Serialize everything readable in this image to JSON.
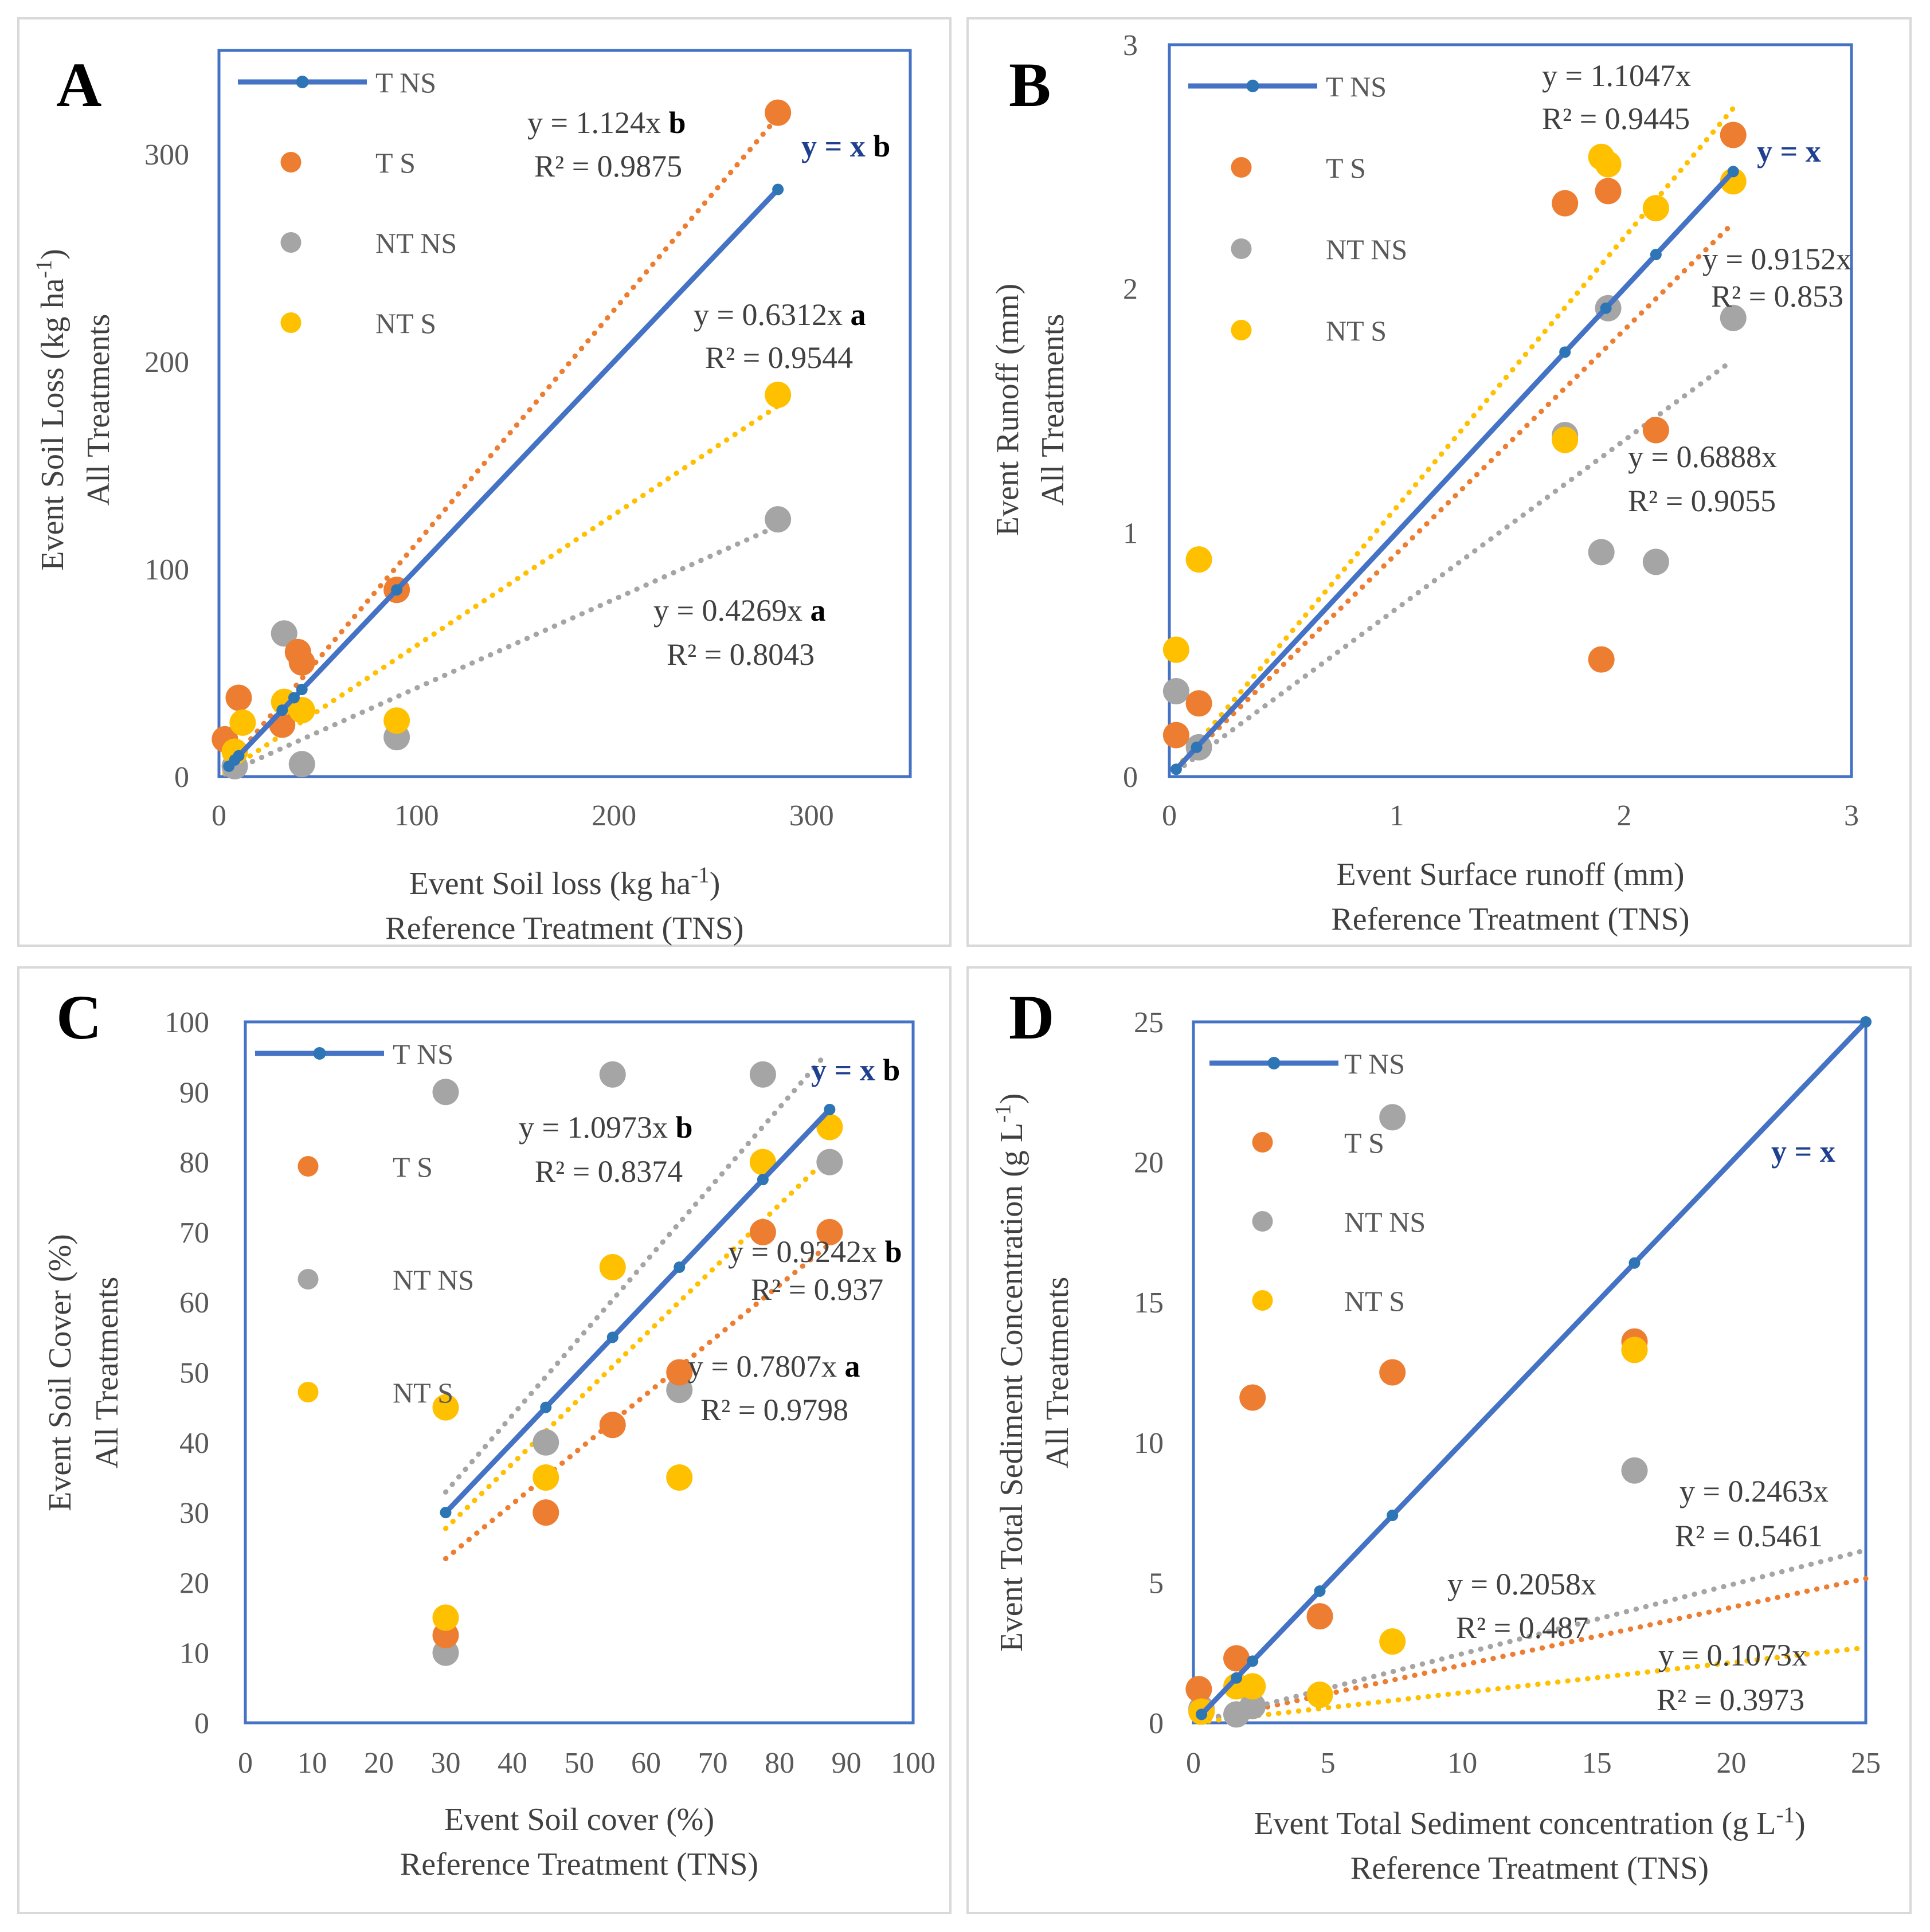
{
  "figure": {
    "colors": {
      "TNS": "#4472c4",
      "TNS_marker": "#2e75b6",
      "TS": "#ed7d31",
      "NTNS": "#a5a5a5",
      "NTS": "#ffc000",
      "frame": "#4472c4",
      "panel_border": "#d9d9d9",
      "yx_label": "#1f3f8f"
    }
  },
  "chart_data": [
    {
      "panel": "A",
      "type": "scatter",
      "xlim": [
        0,
        350
      ],
      "ylim": [
        0,
        350
      ],
      "xticks": [
        0,
        100,
        200,
        300
      ],
      "yticks": [
        0,
        100,
        200,
        300
      ],
      "xlabel_line1": "Event Soil loss (kg ha",
      "xlabel_sup": "-1",
      "xlabel_line1_end": ")",
      "xlabel_line2": "Reference Treatment (TNS)",
      "ylabel_line1": "Event Soil Loss (kg ha",
      "ylabel_sup": "-1",
      "ylabel_line1_end": ")",
      "ylabel_line2": "All  Treatments",
      "legend": [
        "T NS",
        "T S",
        "NT NS",
        "NT S"
      ],
      "series": [
        {
          "name": "T NS",
          "points": [
            [
              5,
              5
            ],
            [
              8,
              8
            ],
            [
              10,
              10
            ],
            [
              32,
              32
            ],
            [
              38,
              38
            ],
            [
              42,
              42
            ],
            [
              90,
              90
            ],
            [
              283,
              283
            ]
          ]
        },
        {
          "name": "T S",
          "points": [
            [
              3,
              18
            ],
            [
              10,
              38
            ],
            [
              32,
              25
            ],
            [
              40,
              60
            ],
            [
              42,
              55
            ],
            [
              90,
              90
            ],
            [
              283,
              320
            ]
          ]
        },
        {
          "name": "NT NS",
          "points": [
            [
              8,
              5
            ],
            [
              33,
              69
            ],
            [
              42,
              6
            ],
            [
              90,
              19
            ],
            [
              283,
              124
            ]
          ]
        },
        {
          "name": "NT S",
          "points": [
            [
              8,
              12
            ],
            [
              12,
              26
            ],
            [
              33,
              36
            ],
            [
              42,
              32
            ],
            [
              90,
              27
            ],
            [
              283,
              184
            ]
          ]
        }
      ],
      "trendlines": [
        {
          "name": "T S",
          "slope": 1.124,
          "x_range": [
            3,
            283
          ]
        },
        {
          "name": "NT NS",
          "slope": 0.4269,
          "x_range": [
            3,
            283
          ]
        },
        {
          "name": "NT S",
          "slope": 0.6312,
          "x_range": [
            3,
            283
          ]
        }
      ],
      "equations": [
        {
          "series": "T S",
          "eq": "y = 1.124x",
          "letter": "b",
          "r2": "R² = 0.9875"
        },
        {
          "series": "NT S",
          "eq": "y = 0.6312x",
          "letter": "a",
          "r2": "R² = 0.9544"
        },
        {
          "series": "NT NS",
          "eq": "y = 0.4269x",
          "letter": "a",
          "r2": "R² = 0.8043"
        }
      ],
      "yx_label": "y = x",
      "yx_letter": "b"
    },
    {
      "panel": "B",
      "type": "scatter",
      "xlim": [
        0,
        3
      ],
      "ylim": [
        0,
        3
      ],
      "xticks": [
        0,
        1,
        2,
        3
      ],
      "yticks": [
        0,
        1,
        2,
        3
      ],
      "xlabel_line1": "Event Surface runoff (mm)",
      "xlabel_line2": "Reference Treatment (TNS)",
      "ylabel_line1": "Event Runoff (mm)",
      "ylabel_line2": "All  Treatments",
      "legend": [
        "T NS",
        "T S",
        "NT NS",
        "NT S"
      ],
      "series": [
        {
          "name": "T NS",
          "points": [
            [
              0.03,
              0.03
            ],
            [
              0.12,
              0.12
            ],
            [
              1.74,
              1.74
            ],
            [
              1.92,
              1.92
            ],
            [
              2.14,
              2.14
            ],
            [
              2.48,
              2.48
            ]
          ]
        },
        {
          "name": "T S",
          "points": [
            [
              0.03,
              0.17
            ],
            [
              0.13,
              0.3
            ],
            [
              1.74,
              2.35
            ],
            [
              1.9,
              0.48
            ],
            [
              1.93,
              2.4
            ],
            [
              2.14,
              1.42
            ],
            [
              2.48,
              2.63
            ]
          ]
        },
        {
          "name": "NT NS",
          "points": [
            [
              0.03,
              0.35
            ],
            [
              0.13,
              0.12
            ],
            [
              1.74,
              1.4
            ],
            [
              1.9,
              0.92
            ],
            [
              1.93,
              1.92
            ],
            [
              2.14,
              0.88
            ],
            [
              2.48,
              1.88
            ]
          ]
        },
        {
          "name": "NT S",
          "points": [
            [
              0.03,
              0.52
            ],
            [
              0.13,
              0.89
            ],
            [
              1.74,
              1.38
            ],
            [
              1.9,
              2.54
            ],
            [
              1.93,
              2.51
            ],
            [
              2.14,
              2.33
            ],
            [
              2.48,
              2.44
            ]
          ]
        }
      ],
      "trendlines": [
        {
          "name": "T S",
          "slope": 0.9152,
          "x_range": [
            0.03,
            2.48
          ]
        },
        {
          "name": "NT NS",
          "slope": 0.6888,
          "x_range": [
            0.03,
            2.45
          ]
        },
        {
          "name": "NT S",
          "slope": 1.1047,
          "x_range": [
            0.03,
            2.48
          ]
        }
      ],
      "equations": [
        {
          "series": "NT S",
          "eq": "y = 1.1047x",
          "letter": "",
          "r2": "R² = 0.9445"
        },
        {
          "series": "T S",
          "eq": "y = 0.9152x",
          "letter": "",
          "r2": "R² = 0.853"
        },
        {
          "series": "NT NS",
          "eq": "y = 0.6888x",
          "letter": "",
          "r2": "R² = 0.9055"
        }
      ],
      "yx_label": "y = x",
      "yx_letter": ""
    },
    {
      "panel": "C",
      "type": "scatter",
      "xlim": [
        0,
        100
      ],
      "ylim": [
        0,
        100
      ],
      "xticks": [
        0,
        10,
        20,
        30,
        40,
        50,
        60,
        70,
        80,
        90,
        100
      ],
      "yticks": [
        0,
        10,
        20,
        30,
        40,
        50,
        60,
        70,
        80,
        90,
        100
      ],
      "xlabel_line1": "Event Soil cover (%)",
      "xlabel_line2": "Reference Treatment (TNS)",
      "ylabel_line1": "Event  Soil Cover (%)",
      "ylabel_line2": "All  Treatments",
      "legend": [
        "T NS",
        "T S",
        "NT NS",
        "NT S"
      ],
      "series": [
        {
          "name": "T NS",
          "points": [
            [
              30,
              30
            ],
            [
              45,
              45
            ],
            [
              55,
              55
            ],
            [
              65,
              65
            ],
            [
              77.5,
              77.5
            ],
            [
              87.5,
              87.5
            ]
          ]
        },
        {
          "name": "T S",
          "points": [
            [
              30,
              12.5
            ],
            [
              45,
              30
            ],
            [
              55,
              42.5
            ],
            [
              65,
              50
            ],
            [
              77.5,
              70
            ],
            [
              87.5,
              70
            ]
          ]
        },
        {
          "name": "NT NS",
          "points": [
            [
              30,
              90
            ],
            [
              30,
              10
            ],
            [
              45,
              40
            ],
            [
              55,
              92.5
            ],
            [
              65,
              47.5
            ],
            [
              77.5,
              92.5
            ],
            [
              87.5,
              80
            ]
          ]
        },
        {
          "name": "NT S",
          "points": [
            [
              30,
              45
            ],
            [
              30,
              15
            ],
            [
              45,
              35
            ],
            [
              55,
              65
            ],
            [
              65,
              35
            ],
            [
              77.5,
              80
            ],
            [
              87.5,
              85
            ]
          ]
        }
      ],
      "trendlines": [
        {
          "name": "T S",
          "slope": 0.7807,
          "x_range": [
            30,
            87.5
          ]
        },
        {
          "name": "NT NS",
          "slope": 1.0973,
          "x_range": [
            30,
            86.5
          ]
        },
        {
          "name": "NT S",
          "slope": 0.9242,
          "x_range": [
            30,
            87.5
          ]
        }
      ],
      "equations": [
        {
          "series": "NT NS",
          "eq": "y = 1.0973x",
          "letter": "b",
          "r2": "R² = 0.8374"
        },
        {
          "series": "NT S",
          "eq": "y = 0.9242x",
          "letter": "b",
          "r2": "R² = 0.937"
        },
        {
          "series": "T S",
          "eq": "y = 0.7807x",
          "letter": "a",
          "r2": "R² = 0.9798"
        }
      ],
      "yx_label": "y = x",
      "yx_letter": "b"
    },
    {
      "panel": "D",
      "type": "scatter",
      "xlim": [
        0,
        25
      ],
      "ylim": [
        0,
        25
      ],
      "xticks": [
        0,
        5,
        10,
        15,
        20,
        25
      ],
      "yticks": [
        0,
        5,
        10,
        15,
        20,
        25
      ],
      "xlabel_line1": "Event Total Sediment concentration (g L",
      "xlabel_sup": "-1",
      "xlabel_line1_end": ")",
      "xlabel_line2": "Reference Treatment (TNS)",
      "ylabel_line1": "Event Total Sediment Concentration (g L",
      "ylabel_sup": "-1",
      "ylabel_line1_end": ")",
      "ylabel_line2": "All  Treatments",
      "legend": [
        "T NS",
        "T S",
        "NT NS",
        "NT S"
      ],
      "series": [
        {
          "name": "T NS",
          "points": [
            [
              0.3,
              0.3
            ],
            [
              1.6,
              1.6
            ],
            [
              2.2,
              2.2
            ],
            [
              4.7,
              4.7
            ],
            [
              7.4,
              7.4
            ],
            [
              16.4,
              16.4
            ],
            [
              25,
              25
            ]
          ]
        },
        {
          "name": "T S",
          "points": [
            [
              0.2,
              1.2
            ],
            [
              1.6,
              2.3
            ],
            [
              2.2,
              11.6
            ],
            [
              4.7,
              3.8
            ],
            [
              7.4,
              12.5
            ],
            [
              16.4,
              13.6
            ]
          ]
        },
        {
          "name": "NT NS",
          "points": [
            [
              0.3,
              0.5
            ],
            [
              1.6,
              0.3
            ],
            [
              2.2,
              0.6
            ],
            [
              4.7,
              1.0
            ],
            [
              7.4,
              21.6
            ],
            [
              16.4,
              9.0
            ]
          ]
        },
        {
          "name": "NT S",
          "points": [
            [
              0.3,
              0.4
            ],
            [
              1.6,
              1.3
            ],
            [
              2.2,
              1.3
            ],
            [
              4.7,
              1.0
            ],
            [
              7.4,
              2.9
            ],
            [
              16.4,
              13.3
            ]
          ]
        }
      ],
      "trendlines": [
        {
          "name": "T S",
          "slope": 0.2058,
          "x_range": [
            0.2,
            25
          ]
        },
        {
          "name": "NT NS",
          "slope": 0.2463,
          "x_range": [
            0.2,
            25
          ]
        },
        {
          "name": "NT S",
          "slope": 0.1073,
          "x_range": [
            0.2,
            25
          ]
        }
      ],
      "equations": [
        {
          "series": "NT NS",
          "eq": "y = 0.2463x",
          "letter": "",
          "r2": "R² = 0.5461"
        },
        {
          "series": "T S",
          "eq": "y = 0.2058x",
          "letter": "",
          "r2": "R² = 0.487"
        },
        {
          "series": "NT S",
          "eq": "y = 0.1073x",
          "letter": "",
          "r2": "R² = 0.3973"
        }
      ],
      "yx_label": "y = x",
      "yx_letter": ""
    }
  ]
}
